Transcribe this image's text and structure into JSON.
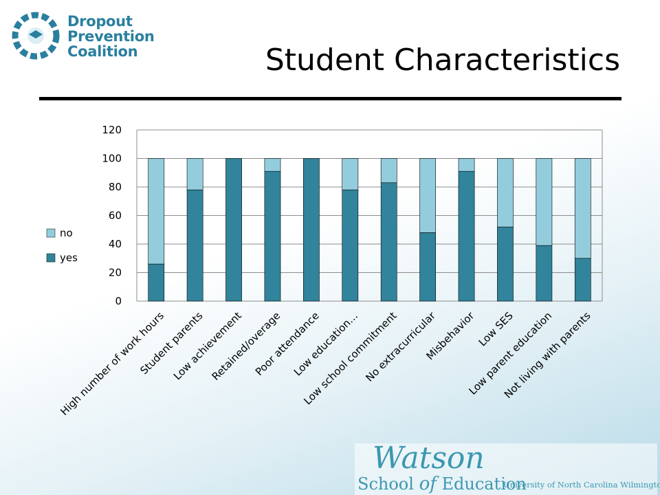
{
  "header": {
    "logo_line1": "Dropout",
    "logo_line2": "Prevention",
    "logo_line3": "Coalition",
    "slide_title": "Student Characteristics"
  },
  "footer": {
    "watson": "Watson",
    "school": "School",
    "of": "of",
    "education": "Education",
    "university": "University of North Carolina Wilmington"
  },
  "colors": {
    "yes": "#31849b",
    "no": "#93cddd",
    "logo": "#2a7f9e",
    "watson": "#3c97b0"
  },
  "chart_data": {
    "type": "bar",
    "stacked": true,
    "categories": [
      "High number of work hours",
      "Student parents",
      "Low achievement",
      "Retained/overage",
      "Poor attendance",
      "Low education…",
      "Low school commitment",
      "No extracurricular",
      "Misbehavior",
      "Low SES",
      "Low parent education",
      "Not living with parents"
    ],
    "series": [
      {
        "name": "yes",
        "values": [
          26,
          78,
          100,
          91,
          100,
          78,
          83,
          48,
          91,
          52,
          39,
          30
        ]
      },
      {
        "name": "no",
        "values": [
          74,
          22,
          0,
          9,
          0,
          22,
          17,
          52,
          9,
          48,
          61,
          70
        ]
      }
    ],
    "ylim": [
      0,
      120
    ],
    "yticks": [
      "0",
      "20",
      "40",
      "60",
      "80",
      "100",
      "120"
    ],
    "grid": true,
    "legend": "left"
  }
}
